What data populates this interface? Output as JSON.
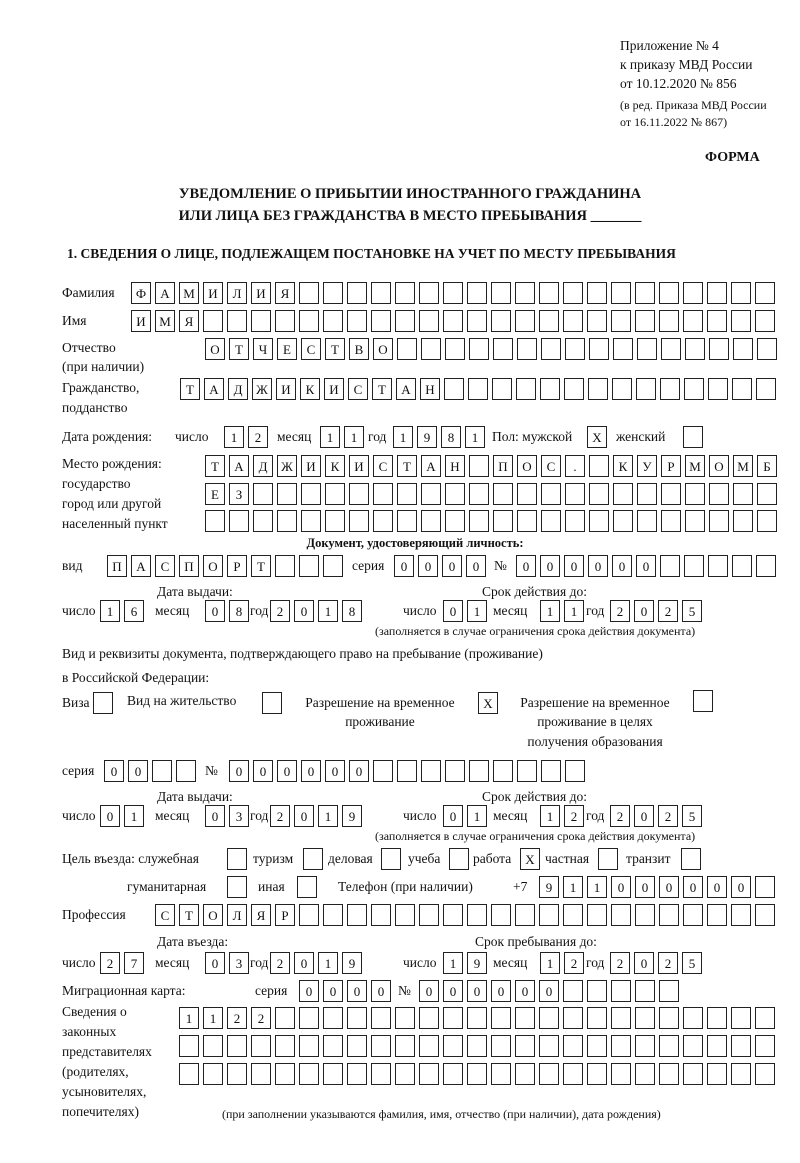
{
  "header": {
    "appendix": "Приложение № 4",
    "order": "к приказу МВД России",
    "order_date": "от 10.12.2020 № 856",
    "edition1": "(в ред. Приказа МВД России",
    "edition2": "от 16.11.2022 № 867)",
    "form_label": "ФОРМА",
    "title1": "УВЕДОМЛЕНИЕ О ПРИБЫТИИ ИНОСТРАННОГО ГРАЖДАНИНА",
    "title2": "ИЛИ ЛИЦА БЕЗ ГРАЖДАНСТВА В МЕСТО ПРЕБЫВАНИЯ _______",
    "section1": "1. СВЕДЕНИЯ О ЛИЦЕ, ПОДЛЕЖАЩЕМ ПОСТАНОВКЕ НА УЧЕТ ПО МЕСТУ ПРЕБЫВАНИЯ"
  },
  "labels": {
    "surname": "Фамилия",
    "name": "Имя",
    "patronymic1": "Отчество",
    "patronymic2": "(при наличии)",
    "citizenship1": "Гражданство,",
    "citizenship2": "подданство",
    "birth_date": "Дата рождения:",
    "day": "число",
    "month": "месяц",
    "year": "год",
    "sex": "Пол: мужской",
    "female": "женский",
    "birth_place1": "Место рождения:",
    "birth_place2": "государство",
    "birth_place3": "город или другой",
    "birth_place4": "населенный пункт",
    "id_doc": "Документ, удостоверяющий личность:",
    "kind": "вид",
    "series": "серия",
    "number": "№",
    "issue_date": "Дата выдачи:",
    "valid_until": "Срок действия до:",
    "validity_note": "(заполняется в случае ограничения срока действия документа)",
    "right_doc1": "Вид и реквизиты документа, подтверждающего право на пребывание (проживание)",
    "right_doc2": "в Российской Федерации:",
    "visa": "Виза",
    "residence": "Вид на жительство",
    "trp1": "Разрешение на временное",
    "trp2": "проживание",
    "trpe1": "Разрешение на временное",
    "trpe2": "проживание в целях",
    "trpe3": "получения образования",
    "purpose": "Цель въезда: служебная",
    "tourism": "туризм",
    "business": "деловая",
    "study": "учеба",
    "work": "работа",
    "private": "частная",
    "transit": "транзит",
    "humanitarian": "гуманитарная",
    "other": "иная",
    "phone": "Телефон (при наличии)",
    "phone_prefix": "+7",
    "profession": "Профессия",
    "entry_date": "Дата въезда:",
    "stay_until": "Срок пребывания до:",
    "migration_card": "Миграционная карта:",
    "reps1": "Сведения о",
    "reps2": "законных",
    "reps3": "представителях",
    "reps4": "(родителях,",
    "reps5": "усыновителях,",
    "reps6": "попечителях)",
    "reps_note": "(при заполнении указываются фамилия, имя, отчество (при наличии), дата рождения)"
  },
  "person": {
    "surname": "ФАМИЛИЯ",
    "name": "ИМЯ",
    "patronymic": "ОТЧЕСТВО",
    "citizenship": "ТАДЖИКИСТАН",
    "birth_day": "12",
    "birth_month": "11",
    "birth_year": "1981",
    "male": "X",
    "female": "",
    "birth_place1": "ТАДЖИКИСТАН ПОС. КУРМОМБ",
    "birth_place2": "ЕЗ",
    "birth_place3": ""
  },
  "id_document": {
    "kind": "ПАСПОРТ",
    "series": "0000",
    "number": "000000",
    "issue_day": "16",
    "issue_month": "08",
    "issue_year": "2018",
    "valid_day": "01",
    "valid_month": "11",
    "valid_year": "2025"
  },
  "right_document": {
    "visa": "",
    "residence": "",
    "trp": "X",
    "trpe": "",
    "series": "00",
    "number": "000000",
    "issue_day": "01",
    "issue_month": "03",
    "issue_year": "2019",
    "valid_day": "01",
    "valid_month": "12",
    "valid_year": "2025"
  },
  "purpose": {
    "service": "",
    "tourism": "",
    "business": "",
    "study": "",
    "work": "X",
    "private": "",
    "transit": "",
    "humanitarian": "",
    "other": ""
  },
  "phone": "911000000",
  "profession": "СТОЛЯР",
  "entry": {
    "day": "27",
    "month": "03",
    "year": "2019",
    "stay_day": "19",
    "stay_month": "12",
    "stay_year": "2025"
  },
  "migration_card": {
    "series": "0000",
    "number": "000000"
  },
  "representatives": {
    "row1": "1122",
    "row2": "",
    "row3": ""
  }
}
